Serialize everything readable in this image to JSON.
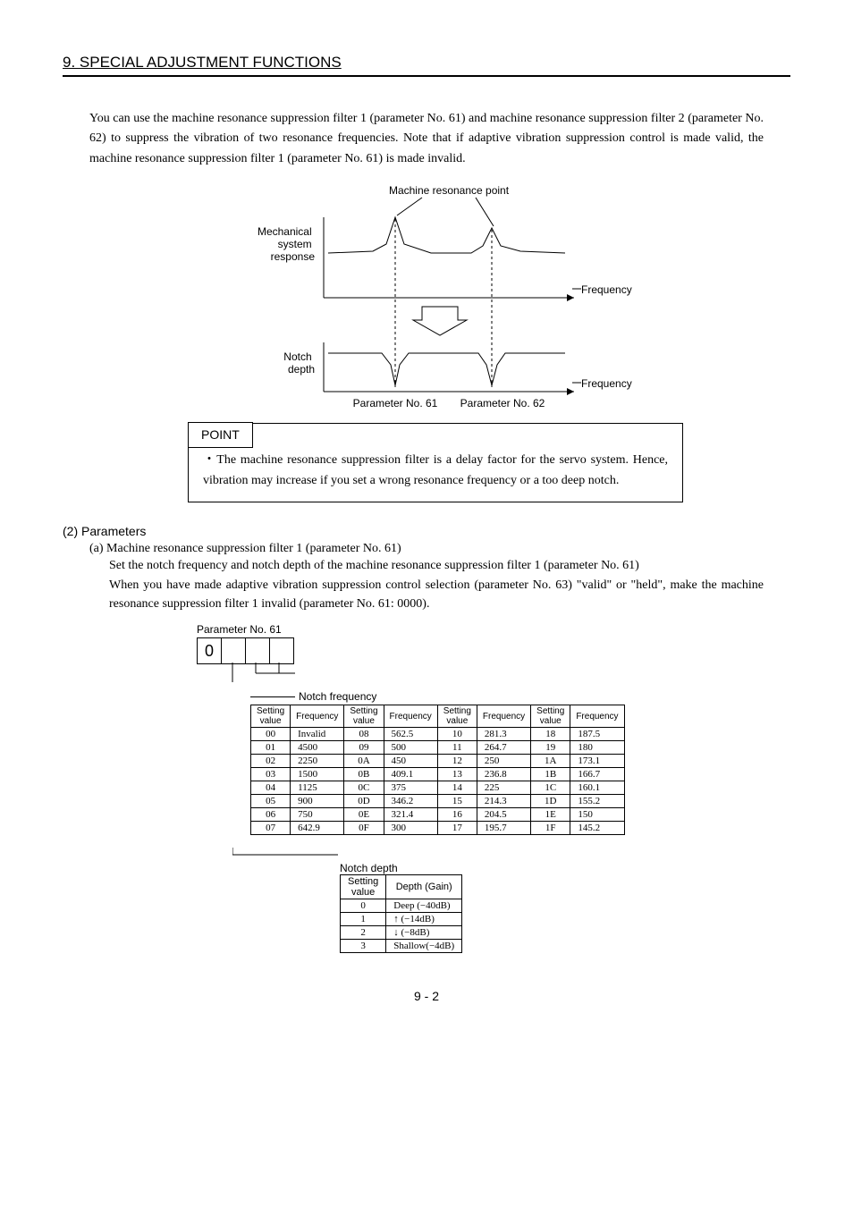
{
  "header": {
    "title": "9. SPECIAL ADJUSTMENT FUNCTIONS"
  },
  "intro": "You can use the machine resonance suppression filter 1 (parameter No. 61) and machine resonance suppression filter 2 (parameter No. 62) to suppress the vibration of two resonance frequencies. Note that if adaptive vibration suppression control is made valid, the machine resonance suppression filter 1 (parameter No. 61) is made invalid.",
  "diagram": {
    "label_top": "Machine resonance point",
    "y1": "Mechanical\nsystem\nresponse",
    "y2": "Notch\ndepth",
    "freq": "Frequency",
    "pn61": "Parameter No. 61",
    "pn62": "Parameter No. 62"
  },
  "point": {
    "label": "POINT",
    "text": "The machine resonance suppression filter is a delay factor for the servo system. Hence, vibration may increase if you set a wrong resonance frequency or a too deep notch."
  },
  "params": {
    "heading": "(2) Parameters",
    "a_heading": "(a) Machine resonance suppression filter 1 (parameter No. 61)",
    "a_text1": "Set the notch frequency and notch depth of the machine resonance suppression filter 1 (parameter No. 61)",
    "a_text2": "When you have made adaptive vibration suppression control selection (parameter No. 63) \"valid\" or \"held\", make the machine resonance suppression filter 1 invalid (parameter No. 61: 0000)."
  },
  "param61": {
    "title": "Parameter No. 61",
    "digit0": "0",
    "label_freq": "Notch frequency",
    "label_depth": "Notch depth",
    "freq_headers": [
      "Setting value",
      "Frequency",
      "Setting value",
      "Frequency",
      "Setting value",
      "Frequency",
      "Setting value",
      "Frequency"
    ],
    "freq_rows": [
      [
        "00",
        "Invalid",
        "08",
        "562.5",
        "10",
        "281.3",
        "18",
        "187.5"
      ],
      [
        "01",
        "4500",
        "09",
        "500",
        "11",
        "264.7",
        "19",
        "180"
      ],
      [
        "02",
        "2250",
        "0A",
        "450",
        "12",
        "250",
        "1A",
        "173.1"
      ],
      [
        "03",
        "1500",
        "0B",
        "409.1",
        "13",
        "236.8",
        "1B",
        "166.7"
      ],
      [
        "04",
        "1125",
        "0C",
        "375",
        "14",
        "225",
        "1C",
        "160.1"
      ],
      [
        "05",
        "900",
        "0D",
        "346.2",
        "15",
        "214.3",
        "1D",
        "155.2"
      ],
      [
        "06",
        "750",
        "0E",
        "321.4",
        "16",
        "204.5",
        "1E",
        "150"
      ],
      [
        "07",
        "642.9",
        "0F",
        "300",
        "17",
        "195.7",
        "1F",
        "145.2"
      ]
    ],
    "depth_headers": [
      "Setting value",
      "Depth (Gain)"
    ],
    "depth_rows": [
      [
        "0",
        "Deep (−40dB)"
      ],
      [
        "1",
        "↑    (−14dB)"
      ],
      [
        "2",
        "↓      (−8dB)"
      ],
      [
        "3",
        "Shallow(−4dB)"
      ]
    ]
  },
  "footer": "9 - 2"
}
